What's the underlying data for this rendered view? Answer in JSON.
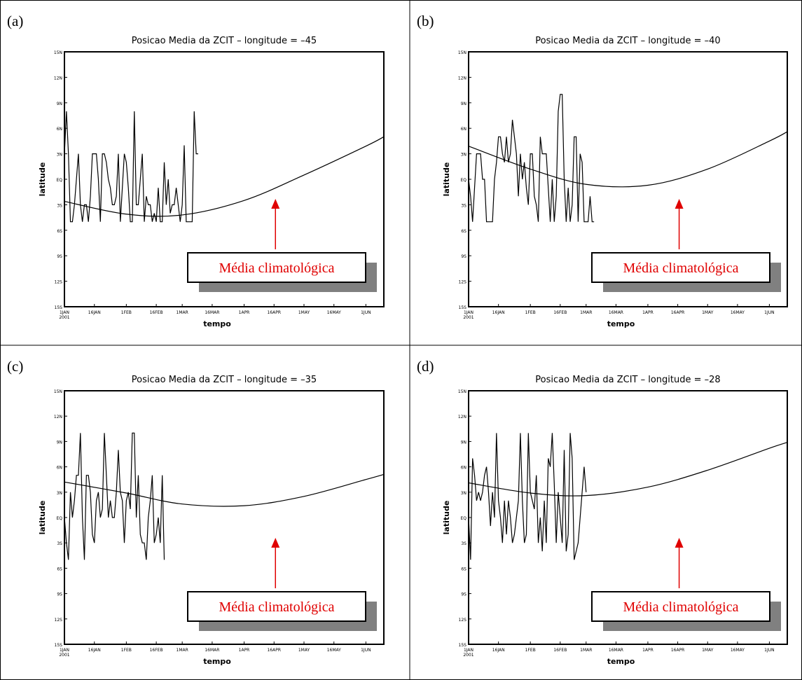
{
  "colors": {
    "line": "#000000",
    "annotation_text": "#e00000",
    "annotation_arrow": "#e00000",
    "annotation_shadow": "#808080",
    "cell_border": "#000000",
    "background": "#ffffff"
  },
  "panels": [
    {
      "letter": "(a)",
      "title": "Posicao Media da ZCIT  –  longitude = –45",
      "annotation": "Média climatológica"
    },
    {
      "letter": "(b)",
      "title": "Posicao Media da ZCIT  –  longitude = –40",
      "annotation": "Média climatológica"
    },
    {
      "letter": "(c)",
      "title": "Posicao Media da ZCIT  –  longitude = –35",
      "annotation": "Média climatológica"
    },
    {
      "letter": "(d)",
      "title": "Posicao Media da ZCIT  –  longitude = –28",
      "annotation": "Média climatológica"
    }
  ],
  "chart_data": [
    {
      "type": "line",
      "title": "Posicao Media da ZCIT  –  longitude = –45",
      "xlabel": "tempo",
      "ylabel": "latitude",
      "x_ticks": [
        "1JAN\n2001",
        "16JAN",
        "1FEB",
        "16FEB",
        "1MAR",
        "16MAR",
        "1APR",
        "16APR",
        "1MAY",
        "16MAY",
        "1JUN"
      ],
      "y_ticks": [
        "15S",
        "12S",
        "9S",
        "6S",
        "3S",
        "EQ",
        "3N",
        "6N",
        "9N",
        "12N",
        "15N"
      ],
      "xlim": [
        "2001-01-01",
        "2001-06-10"
      ],
      "ylim": [
        -15,
        15
      ],
      "series": [
        {
          "kind": "daily",
          "x_start": "2001-01-01",
          "y": [
            3,
            8,
            3,
            -5,
            -5,
            -3,
            0,
            3,
            -3,
            -5,
            -3,
            -3,
            -5,
            -2,
            3,
            3,
            3,
            0,
            -5,
            3,
            3,
            2,
            0,
            -1,
            -3,
            -3,
            -2,
            3,
            -5,
            -1,
            3,
            2,
            -1,
            -5,
            -5,
            8,
            -3,
            -3,
            0,
            3,
            -5,
            -2,
            -3,
            -3,
            -5,
            -4,
            -5,
            -1,
            -5,
            -5,
            2,
            -3,
            0,
            -4,
            -3,
            -3,
            -1,
            -3,
            -5,
            -3,
            4,
            -5,
            -5,
            -5,
            -5,
            8,
            3,
            3
          ]
        },
        {
          "kind": "climatology",
          "x": [
            "2001-01-01",
            "2001-02-01",
            "2001-03-01",
            "2001-04-01",
            "2001-05-01",
            "2001-06-01",
            "2001-06-10"
          ],
          "y": [
            -2.6,
            -4.1,
            -4.2,
            -2.5,
            0.5,
            3.9,
            5
          ]
        }
      ]
    },
    {
      "type": "line",
      "title": "Posicao Media da ZCIT  –  longitude = –40",
      "xlabel": "tempo",
      "ylabel": "latitude",
      "x_ticks": [
        "1JAN\n2001",
        "16JAN",
        "1FEB",
        "16FEB",
        "1MAR",
        "16MAR",
        "1APR",
        "16APR",
        "1MAY",
        "16MAY",
        "1JUN"
      ],
      "y_ticks": [
        "15S",
        "12S",
        "9S",
        "6S",
        "3S",
        "EQ",
        "3N",
        "6N",
        "9N",
        "12N",
        "15N"
      ],
      "xlim": [
        "2001-01-01",
        "2001-06-10"
      ],
      "ylim": [
        -15,
        15
      ],
      "series": [
        {
          "kind": "daily",
          "x_start": "2001-01-01",
          "y": [
            0,
            -2,
            -5,
            -1,
            3,
            3,
            3,
            0,
            0,
            -5,
            -5,
            -5,
            -5,
            0,
            2,
            5,
            5,
            3,
            2,
            5,
            2,
            3,
            7,
            5,
            3,
            -2,
            3,
            0,
            2,
            -1,
            -3,
            3,
            3,
            -2,
            -3,
            -5,
            5,
            3,
            3,
            3,
            -1,
            -5,
            0,
            -5,
            -2,
            8,
            10,
            10,
            0,
            -5,
            -1,
            -5,
            -3,
            5,
            5,
            -5,
            3,
            2,
            -5,
            -5,
            -5,
            -2,
            -5,
            -5
          ]
        },
        {
          "kind": "climatology",
          "x": [
            "2001-01-01",
            "2001-02-01",
            "2001-03-01",
            "2001-04-01",
            "2001-05-01",
            "2001-06-01",
            "2001-06-10"
          ],
          "y": [
            3.9,
            1.2,
            -0.6,
            -0.7,
            1.2,
            4.5,
            5.6
          ]
        }
      ]
    },
    {
      "type": "line",
      "title": "Posicao Media da ZCIT  –  longitude = –35",
      "xlabel": "tempo",
      "ylabel": "latitude",
      "x_ticks": [
        "1JAN\n2001",
        "16JAN",
        "1FEB",
        "16FEB",
        "1MAR",
        "16MAR",
        "1APR",
        "16APR",
        "1MAY",
        "16MAY",
        "1JUN"
      ],
      "y_ticks": [
        "15S",
        "12S",
        "9S",
        "6S",
        "3S",
        "EQ",
        "3N",
        "6N",
        "9N",
        "12N",
        "15N"
      ],
      "xlim": [
        "2001-01-01",
        "2001-06-10"
      ],
      "ylim": [
        -15,
        15
      ],
      "series": [
        {
          "kind": "daily",
          "x_start": "2001-01-01",
          "y": [
            0,
            -3,
            -5,
            3,
            0,
            2,
            5,
            5,
            10,
            0,
            -5,
            5,
            5,
            3,
            -2,
            -3,
            2,
            3,
            0,
            1,
            10,
            5,
            0,
            2,
            0,
            0,
            3,
            8,
            3,
            2,
            -3,
            2,
            3,
            1,
            10,
            10,
            0,
            5,
            -2,
            -3,
            -3,
            -5,
            0,
            2,
            5,
            -3,
            -2,
            0,
            -3,
            5,
            -5
          ]
        },
        {
          "kind": "climatology",
          "x": [
            "2001-01-01",
            "2001-02-01",
            "2001-03-01",
            "2001-04-01",
            "2001-05-01",
            "2001-06-01",
            "2001-06-10"
          ],
          "y": [
            4.2,
            2.9,
            1.6,
            1.4,
            2.5,
            4.5,
            5.1
          ]
        }
      ]
    },
    {
      "type": "line",
      "title": "Posicao Media da ZCIT  –  longitude = –28",
      "xlabel": "tempo",
      "ylabel": "latitude",
      "x_ticks": [
        "1JAN\n2001",
        "16JAN",
        "1FEB",
        "16FEB",
        "1MAR",
        "16MAR",
        "1APR",
        "16APR",
        "1MAY",
        "16MAY",
        "1JUN"
      ],
      "y_ticks": [
        "15S",
        "12S",
        "9S",
        "6S",
        "3S",
        "EQ",
        "3N",
        "6N",
        "9N",
        "12N",
        "15N"
      ],
      "xlim": [
        "2001-01-01",
        "2001-06-10"
      ],
      "ylim": [
        -15,
        15
      ],
      "series": [
        {
          "kind": "daily",
          "x_start": "2001-01-01",
          "y": [
            0,
            -5,
            7,
            5,
            2,
            3,
            2,
            3,
            5,
            6,
            3,
            -1,
            3,
            0,
            10,
            2,
            0,
            -3,
            2,
            -2,
            2,
            0,
            -3,
            -2,
            0,
            2,
            10,
            2,
            -3,
            -2,
            10,
            3,
            2,
            1,
            5,
            -3,
            0,
            -4,
            2,
            -3,
            7,
            6,
            10,
            4,
            -3,
            3,
            0,
            -3,
            8,
            -4,
            -2,
            10,
            7,
            -5,
            -4,
            -3,
            0,
            3,
            6,
            3
          ]
        },
        {
          "kind": "climatology",
          "x": [
            "2001-01-01",
            "2001-02-01",
            "2001-03-01",
            "2001-04-01",
            "2001-05-01",
            "2001-06-01",
            "2001-06-10"
          ],
          "y": [
            4.1,
            2.9,
            2.6,
            3.6,
            5.6,
            8.2,
            8.9
          ]
        }
      ]
    }
  ]
}
